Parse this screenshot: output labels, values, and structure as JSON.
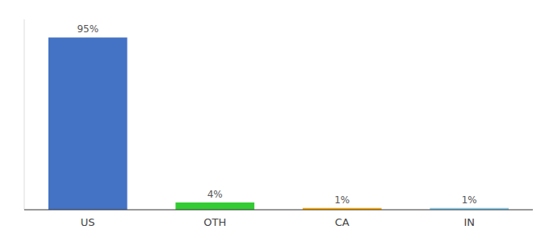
{
  "chart_data": {
    "type": "bar",
    "categories": [
      "US",
      "OTH",
      "CA",
      "IN"
    ],
    "values": [
      95,
      4,
      1,
      1
    ],
    "value_labels": [
      "95%",
      "4%",
      "1%",
      "1%"
    ],
    "colors": [
      "#4472c4",
      "#33cc33",
      "#ffaa00",
      "#87ceeb"
    ],
    "ylim": [
      0,
      105
    ],
    "data_labels": true,
    "tick_labels": "x",
    "grid": false
  }
}
